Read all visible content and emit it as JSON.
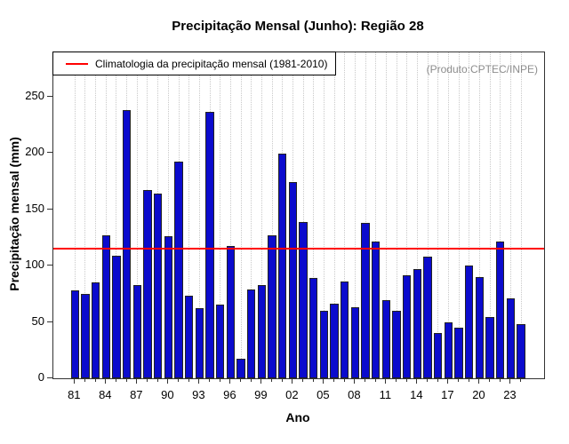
{
  "title": "Precipitação Mensal (Junho): Região 28",
  "legend": {
    "label": "Climatologia da precipitação mensal (1981-2010)",
    "line_color": "#ff0000"
  },
  "watermark": "(Produto:CPTEC/INPE)",
  "chart_data": {
    "type": "bar",
    "title": "Precipitação Mensal (Junho): Região 28",
    "xlabel": "Ano",
    "ylabel": "Precipitação mensal (mm)",
    "ylim": [
      0,
      289
    ],
    "yticks": [
      0,
      50,
      100,
      150,
      200,
      250
    ],
    "x_major_tick_labels": [
      "81",
      "84",
      "87",
      "90",
      "93",
      "96",
      "99",
      "02",
      "05",
      "08",
      "11",
      "14",
      "17",
      "20",
      "23"
    ],
    "years": [
      1981,
      1982,
      1983,
      1984,
      1985,
      1986,
      1987,
      1988,
      1989,
      1990,
      1991,
      1992,
      1993,
      1994,
      1995,
      1996,
      1997,
      1998,
      1999,
      2000,
      2001,
      2002,
      2003,
      2004,
      2005,
      2006,
      2007,
      2008,
      2009,
      2010,
      2011,
      2012,
      2013,
      2014,
      2015,
      2016,
      2017,
      2018,
      2019,
      2020,
      2021,
      2022,
      2023,
      2024
    ],
    "values": [
      78,
      75,
      85,
      127,
      109,
      238,
      83,
      167,
      164,
      126,
      192,
      73,
      62,
      236,
      65,
      117,
      17,
      79,
      83,
      127,
      199,
      174,
      139,
      89,
      60,
      66,
      86,
      63,
      138,
      121,
      69,
      60,
      91,
      97,
      108,
      40,
      50,
      45,
      100,
      90,
      54,
      121,
      71,
      48
    ],
    "climatology_value": 115,
    "bar_color": "#0b0bcd",
    "bar_border_color": "#222222",
    "climatology_line_color": "#ff0000",
    "grid": "vertical dotted per year",
    "legend_position": "top-left inside plot"
  }
}
